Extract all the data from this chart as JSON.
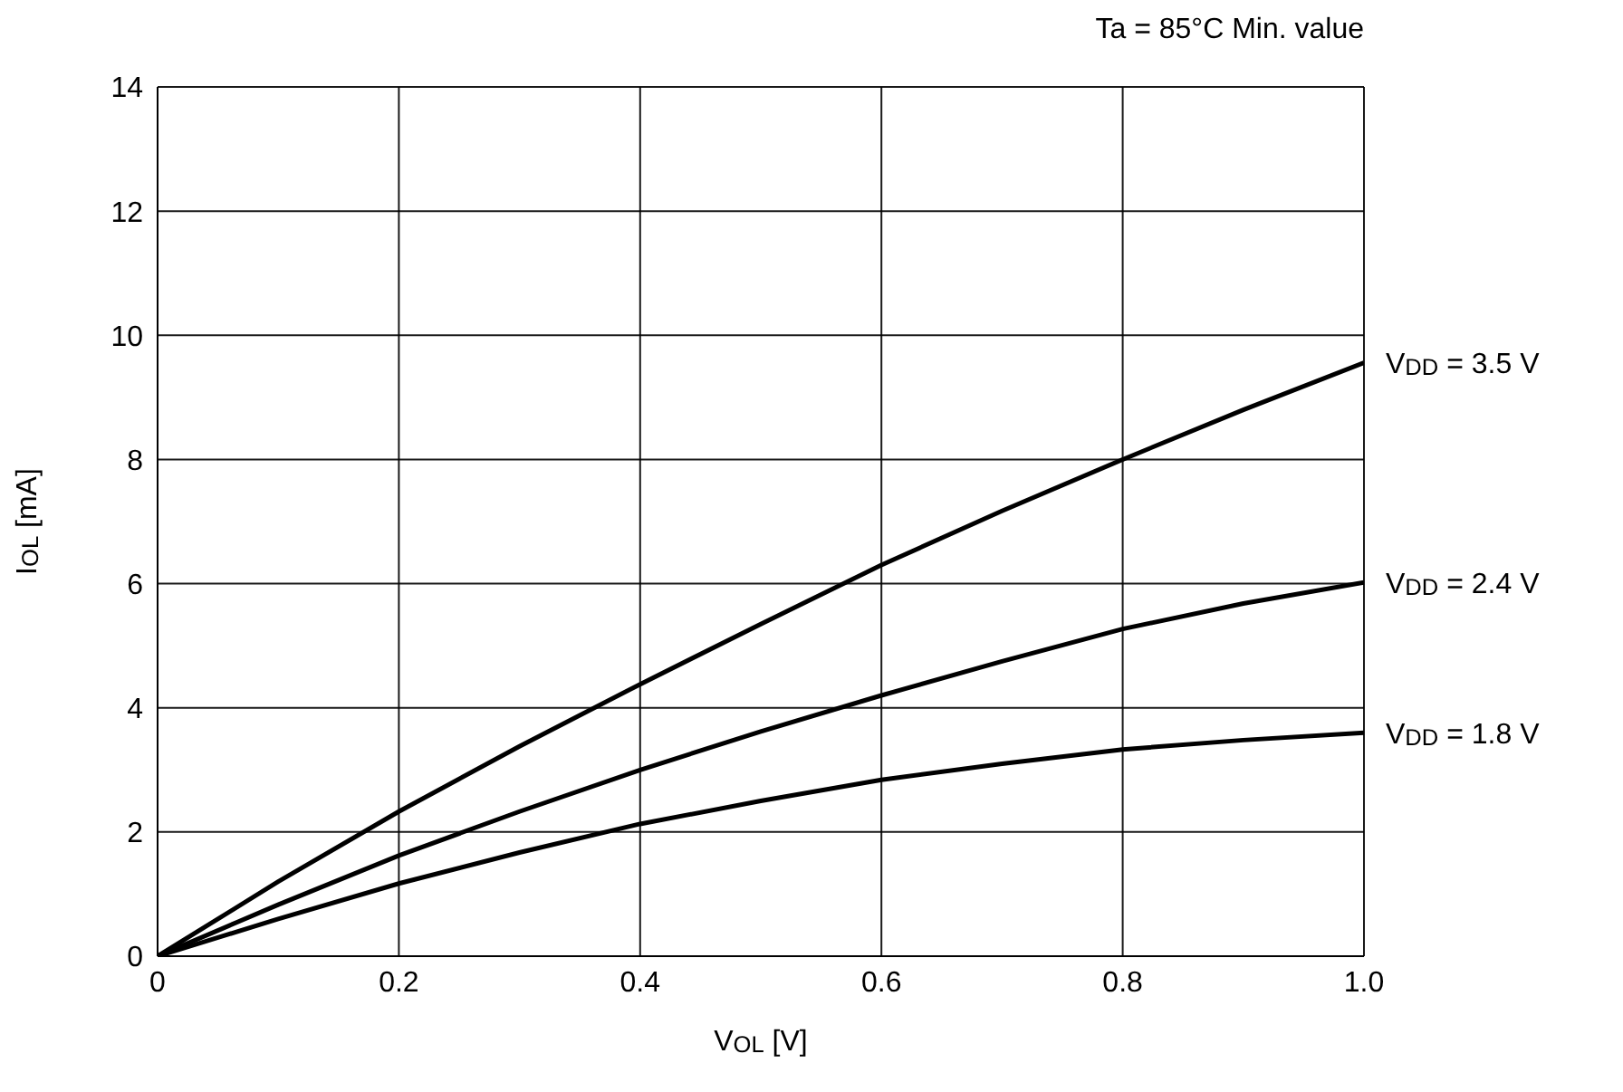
{
  "chart_data": {
    "type": "line",
    "title": "Ta = 85°C Min. value",
    "xlabel": "V$_{OL}$ [V]",
    "ylabel": "I$_{OL}$ [mA]",
    "x": [
      0,
      0.1,
      0.2,
      0.3,
      0.4,
      0.5,
      0.6,
      0.7,
      0.8,
      0.9,
      1.0
    ],
    "series": [
      {
        "name": "V$_{DD}$ = 3.5 V",
        "color": "#000000",
        "values": [
          0,
          1.2,
          2.33,
          3.38,
          4.38,
          5.35,
          6.3,
          7.17,
          8.0,
          8.8,
          9.56
        ]
      },
      {
        "name": "V$_{DD}$ = 2.4 V",
        "color": "#000000",
        "values": [
          0,
          0.83,
          1.62,
          2.33,
          3.0,
          3.62,
          4.2,
          4.75,
          5.27,
          5.68,
          6.02
        ]
      },
      {
        "name": "V$_{DD}$ = 1.8 V",
        "color": "#000000",
        "values": [
          0,
          0.6,
          1.17,
          1.67,
          2.13,
          2.5,
          2.84,
          3.1,
          3.33,
          3.48,
          3.6
        ]
      }
    ],
    "xlim": [
      0,
      1.0
    ],
    "xticks": [
      0,
      0.2,
      0.4,
      0.6,
      0.8,
      {
        "value": 1.0,
        "label": "1.0"
      }
    ],
    "ylim": [
      0,
      14
    ],
    "yticks": [
      0,
      2,
      4,
      6,
      8,
      10,
      12,
      14
    ],
    "grid": true,
    "marker": "none",
    "line_style": "solid"
  }
}
